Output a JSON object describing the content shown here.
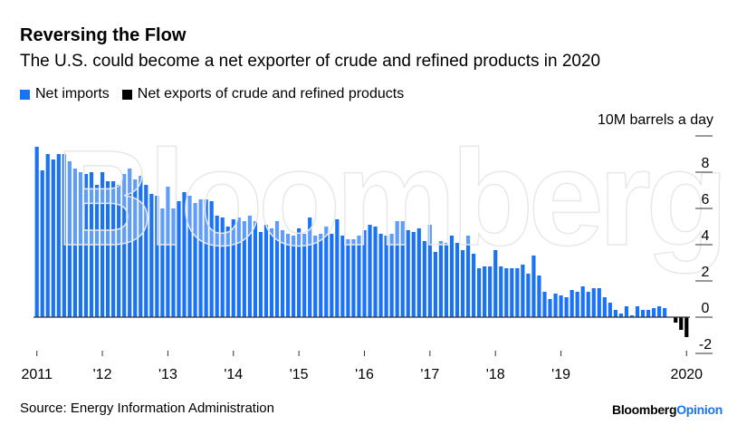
{
  "title": "Reversing the Flow",
  "subtitle": "The U.S. could become a net exporter of crude and refined products in 2020",
  "source": "Source: Energy Information Administration",
  "logo": {
    "brand": "Bloomberg",
    "section": "Opinion"
  },
  "watermark": "Bloomberg",
  "colors": {
    "net_imports": "#1a73f5",
    "net_exports": "#000000",
    "logo_accent": "#1a73f5"
  },
  "chart_data": {
    "type": "bar",
    "title": "Reversing the Flow",
    "ylabel": "10M barrels a day",
    "ylim": [
      -2,
      10
    ],
    "yticks": [
      -2,
      0,
      2,
      4,
      6,
      8
    ],
    "grid": false,
    "legend_placement": "top-left",
    "x_start": "2011-01",
    "frequency": "monthly",
    "xtick_labels": [
      {
        "label": "2011",
        "month_index": 0
      },
      {
        "label": "'12",
        "month_index": 12
      },
      {
        "label": "'13",
        "month_index": 24
      },
      {
        "label": "'14",
        "month_index": 36
      },
      {
        "label": "'15",
        "month_index": 48
      },
      {
        "label": "'16",
        "month_index": 60
      },
      {
        "label": "'17",
        "month_index": 72
      },
      {
        "label": "'18",
        "month_index": 84
      },
      {
        "label": "'19",
        "month_index": 96
      },
      {
        "label": "2020",
        "month_index": 119
      }
    ],
    "series": [
      {
        "name": "Net imports",
        "color": "#1a73f5"
      },
      {
        "name": "Net exports of crude and refined products",
        "color": "#000000"
      }
    ],
    "values": [
      9.4,
      8.1,
      9.0,
      8.7,
      9.0,
      9.0,
      8.6,
      8.2,
      8.0,
      7.9,
      8.0,
      7.3,
      8.0,
      7.5,
      7.5,
      7.3,
      7.9,
      8.2,
      7.6,
      7.8,
      7.3,
      6.8,
      6.7,
      6.0,
      7.2,
      6.0,
      6.4,
      6.9,
      6.7,
      6.3,
      6.5,
      6.5,
      6.4,
      5.6,
      5.5,
      5.0,
      5.4,
      5.5,
      5.3,
      5.6,
      5.3,
      4.7,
      5.1,
      4.9,
      5.3,
      4.8,
      4.6,
      4.5,
      4.9,
      4.6,
      5.5,
      4.5,
      4.6,
      5.0,
      4.6,
      5.4,
      4.5,
      4.3,
      4.3,
      4.5,
      4.8,
      5.1,
      5.0,
      4.6,
      4.5,
      4.6,
      5.3,
      5.3,
      4.8,
      4.7,
      4.9,
      4.2,
      5.1,
      3.6,
      4.2,
      4.1,
      4.5,
      4.1,
      3.7,
      4.5,
      3.5,
      2.7,
      2.8,
      2.8,
      3.7,
      2.8,
      2.7,
      2.7,
      2.7,
      2.9,
      2.4,
      3.4,
      2.3,
      1.4,
      1.0,
      1.3,
      1.2,
      1.1,
      1.5,
      1.4,
      1.7,
      1.4,
      1.6,
      1.6,
      1.1,
      0.8,
      0.4,
      0.2,
      0.6,
      0.1,
      0.6,
      0.4,
      0.4,
      0.5,
      0.6,
      0.5,
      0.0,
      -0.3,
      -0.7,
      -1.1
    ]
  }
}
